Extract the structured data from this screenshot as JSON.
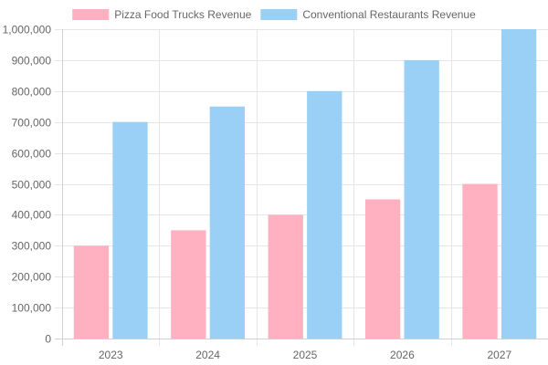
{
  "chart_data": {
    "type": "bar",
    "categories": [
      "2023",
      "2024",
      "2025",
      "2026",
      "2027"
    ],
    "series": [
      {
        "name": "Pizza Food Trucks Revenue",
        "values": [
          300000,
          350000,
          400000,
          450000,
          500000
        ],
        "fill": "#ffb1c1",
        "stroke": "#ff6384"
      },
      {
        "name": "Conventional Restaurants Revenue",
        "values": [
          700000,
          750000,
          800000,
          900000,
          1000000
        ],
        "fill": "#9ad0f5",
        "stroke": "#36a2eb"
      }
    ],
    "ylim": [
      0,
      1000000
    ],
    "yticks": [
      "0",
      "100,000",
      "200,000",
      "300,000",
      "400,000",
      "500,000",
      "600,000",
      "700,000",
      "800,000",
      "900,000",
      "1,000,000"
    ],
    "legend_position": "top",
    "grid": true
  }
}
